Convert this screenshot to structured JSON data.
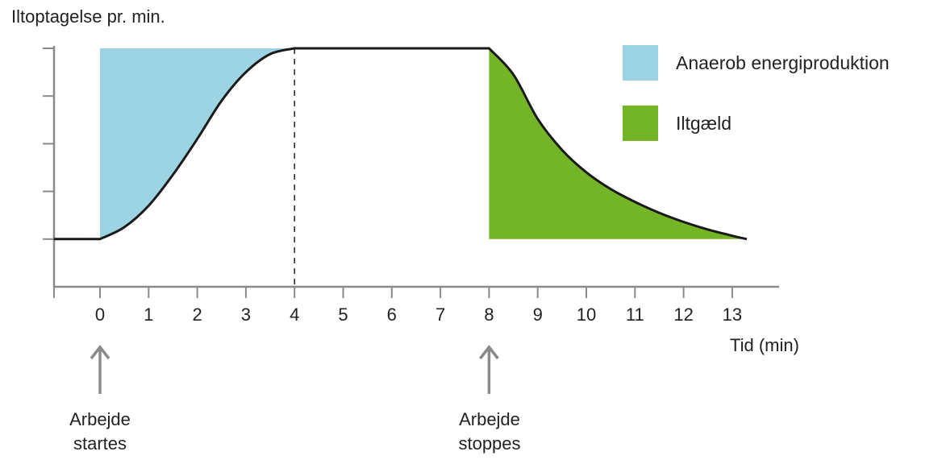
{
  "chart_data": {
    "type": "line",
    "ylabel": "Iltoptagelse pr. min.",
    "xlabel": "Tid (min)",
    "xlim": [
      -1,
      13.5
    ],
    "ylim": [
      0,
      5
    ],
    "x_ticks": [
      0,
      1,
      2,
      3,
      4,
      5,
      6,
      7,
      8,
      9,
      10,
      11,
      12,
      13
    ],
    "y_ticks": [
      0,
      1,
      2,
      3,
      4,
      5
    ],
    "series": [
      {
        "x": [
          -0.95,
          0,
          0.5,
          1,
          1.5,
          2,
          2.5,
          3,
          3.5,
          4,
          8,
          8.5,
          9,
          9.5,
          10,
          10.5,
          11,
          11.5,
          12,
          12.5,
          13,
          13.3
        ],
        "y": [
          1.0,
          1.0,
          1.25,
          1.7,
          2.35,
          3.1,
          3.9,
          4.5,
          4.88,
          5.0,
          5.0,
          4.45,
          3.52,
          2.87,
          2.4,
          2.05,
          1.78,
          1.55,
          1.36,
          1.2,
          1.07,
          1.0
        ]
      }
    ],
    "vline_x": 4,
    "legend": [
      {
        "label": "Anaerob energiproduktion",
        "color": "#9cd4e4"
      },
      {
        "label": "Iltgæld",
        "color": "#74b427"
      }
    ],
    "annotations": [
      {
        "x": 0,
        "lines": [
          "Arbejde",
          "startes"
        ]
      },
      {
        "x": 8,
        "lines": [
          "Arbejde",
          "stoppes"
        ]
      }
    ],
    "grid": false,
    "legend_position": "top-right"
  },
  "colors": {
    "axis": "#8a8a8a",
    "line": "#1a1a1a",
    "arrow": "#8a8a8a"
  }
}
